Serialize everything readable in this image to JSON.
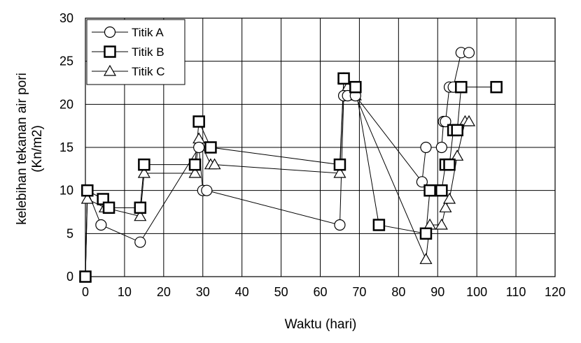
{
  "chart_data": {
    "type": "scatter",
    "xlabel": "Waktu (hari)",
    "ylabel": "kelebihan tekanan air pori (Kn/m2)",
    "xlim": [
      0,
      120
    ],
    "ylim": [
      0,
      30
    ],
    "xticks": [
      "0",
      "10",
      "20",
      "30",
      "40",
      "50",
      "60",
      "70",
      "80",
      "90",
      "100",
      "110",
      "120"
    ],
    "yticks": [
      "0",
      "5",
      "10",
      "15",
      "20",
      "25",
      "30"
    ],
    "grid": true,
    "legend_position": "top-left",
    "series": [
      {
        "name": "Titik A",
        "marker": "circle",
        "x": [
          0,
          0.5,
          4,
          14,
          29,
          30,
          31,
          65,
          66,
          67,
          69,
          86,
          87,
          91,
          91.5,
          92,
          93,
          94,
          96,
          98
        ],
        "y": [
          0,
          10,
          6,
          4,
          15,
          10,
          10,
          6,
          21,
          21,
          21,
          11,
          15,
          15,
          18,
          18,
          22,
          22,
          26,
          26
        ]
      },
      {
        "name": "Titik B",
        "marker": "square",
        "x": [
          0,
          0.5,
          4.5,
          6,
          14,
          15,
          28,
          29,
          32,
          65,
          66,
          69,
          75,
          87,
          88,
          91,
          92,
          93,
          94,
          95,
          96,
          105
        ],
        "y": [
          0,
          10,
          9,
          8,
          8,
          13,
          13,
          18,
          15,
          13,
          23,
          22,
          6,
          5,
          10,
          10,
          13,
          13,
          17,
          17,
          22,
          22
        ]
      },
      {
        "name": "Titik C",
        "marker": "triangle",
        "x": [
          0,
          0.5,
          5,
          14,
          15,
          28,
          29,
          32,
          33,
          65,
          66,
          67,
          69,
          87,
          88,
          91,
          92,
          93,
          95,
          97,
          98
        ],
        "y": [
          0,
          9,
          8,
          7,
          12,
          12,
          16,
          13,
          13,
          12,
          23,
          22,
          21,
          2,
          6,
          6,
          8,
          9,
          14,
          18,
          18
        ]
      }
    ]
  }
}
